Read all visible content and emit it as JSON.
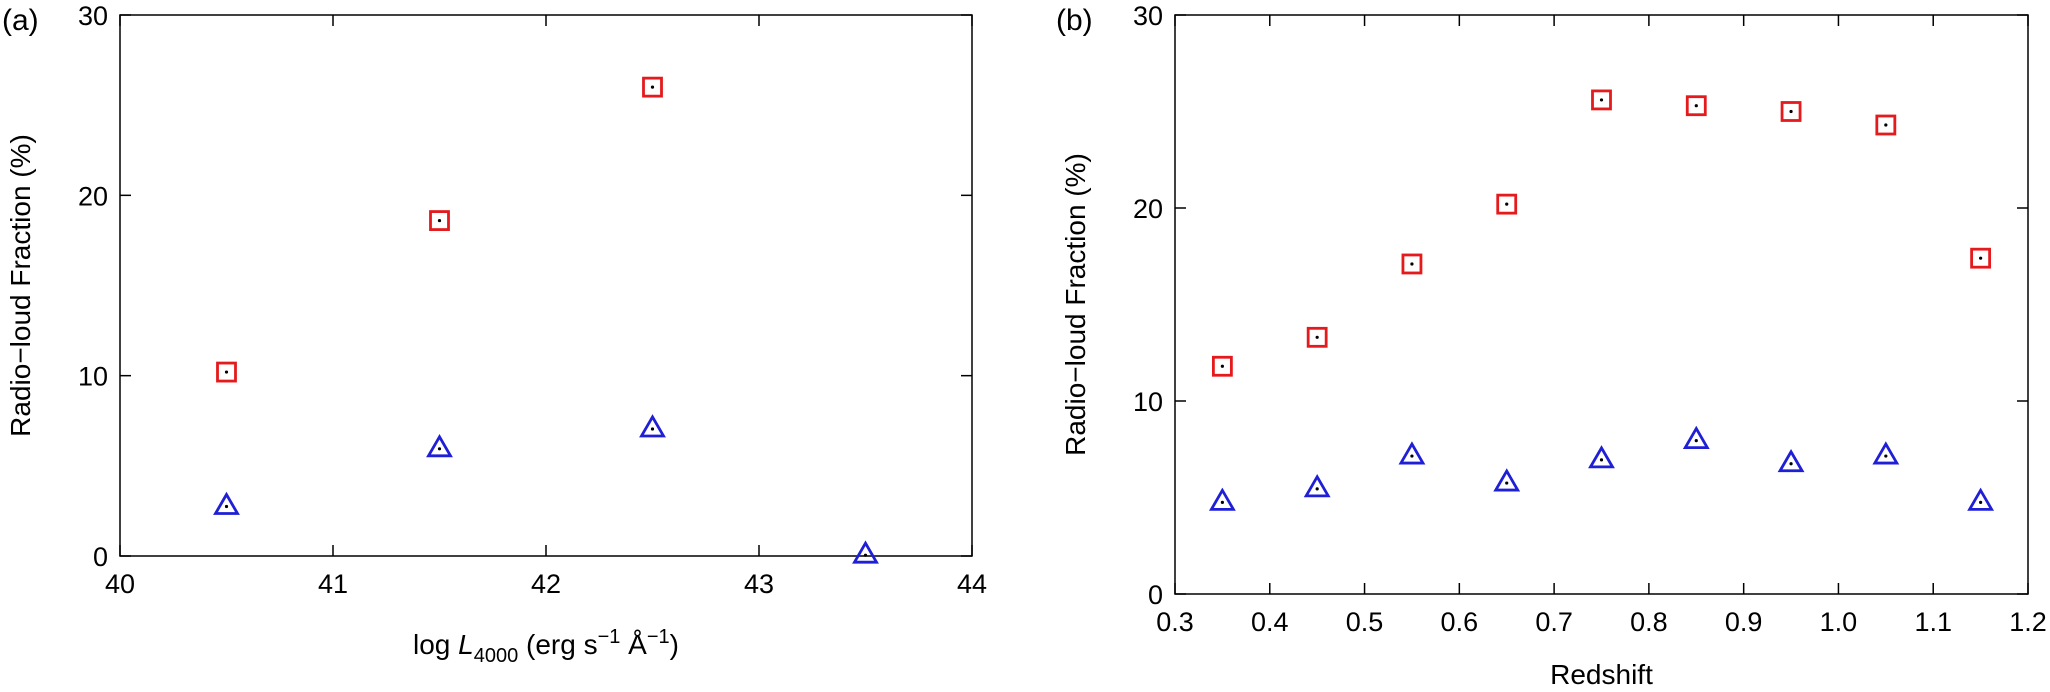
{
  "chart_data": [
    {
      "type": "scatter",
      "panel_label": "(a)",
      "xlabel": {
        "prefix": "log ",
        "italic": "L",
        "subscript": "4000",
        "suffix": " (erg s",
        "sup1": "−1",
        "mid": " Å",
        "sup2": "−1",
        "end": ")"
      },
      "ylabel": "Radio−loud Fraction (%)",
      "xlim": [
        40,
        44
      ],
      "ylim": [
        0,
        30
      ],
      "xticks": [
        40,
        41,
        42,
        43,
        44
      ],
      "xtick_labels": [
        "40",
        "41",
        "42",
        "43",
        "44"
      ],
      "yticks": [
        0,
        10,
        20,
        30
      ],
      "ytick_labels": [
        "0",
        "10",
        "20",
        "30"
      ],
      "grid": false,
      "series": [
        {
          "marker": "square",
          "color": "#e41a1c",
          "x": [
            40.5,
            41.5,
            42.5
          ],
          "y": [
            10.2,
            18.6,
            26.0
          ]
        },
        {
          "marker": "triangle",
          "color": "#1f1fd6",
          "x": [
            40.5,
            41.5,
            42.5,
            43.5
          ],
          "y": [
            2.8,
            6.0,
            7.1,
            0.1
          ]
        }
      ]
    },
    {
      "type": "scatter",
      "panel_label": "(b)",
      "xlabel": "Redshift",
      "ylabel": "Radio−loud Fraction (%)",
      "xlim": [
        0.3,
        1.2
      ],
      "ylim": [
        0,
        30
      ],
      "xticks": [
        0.3,
        0.4,
        0.5,
        0.6,
        0.7,
        0.8,
        0.9,
        1.0,
        1.1,
        1.2
      ],
      "xtick_labels": [
        "0.3",
        "0.4",
        "0.5",
        "0.6",
        "0.7",
        "0.8",
        "0.9",
        "1.0",
        "1.1",
        "1.2"
      ],
      "yticks": [
        0,
        10,
        20,
        30
      ],
      "ytick_labels": [
        "0",
        "10",
        "20",
        "30"
      ],
      "grid": false,
      "series": [
        {
          "marker": "square",
          "color": "#e41a1c",
          "x": [
            0.35,
            0.45,
            0.55,
            0.65,
            0.75,
            0.85,
            0.95,
            1.05,
            1.15
          ],
          "y": [
            11.8,
            13.3,
            17.1,
            20.2,
            25.6,
            25.3,
            25.0,
            24.3,
            17.4
          ]
        },
        {
          "marker": "triangle",
          "color": "#1f1fd6",
          "x": [
            0.35,
            0.45,
            0.55,
            0.65,
            0.75,
            0.85,
            0.95,
            1.05,
            1.15
          ],
          "y": [
            4.8,
            5.5,
            7.2,
            5.8,
            7.0,
            8.0,
            6.8,
            7.2,
            4.8
          ]
        }
      ]
    }
  ]
}
